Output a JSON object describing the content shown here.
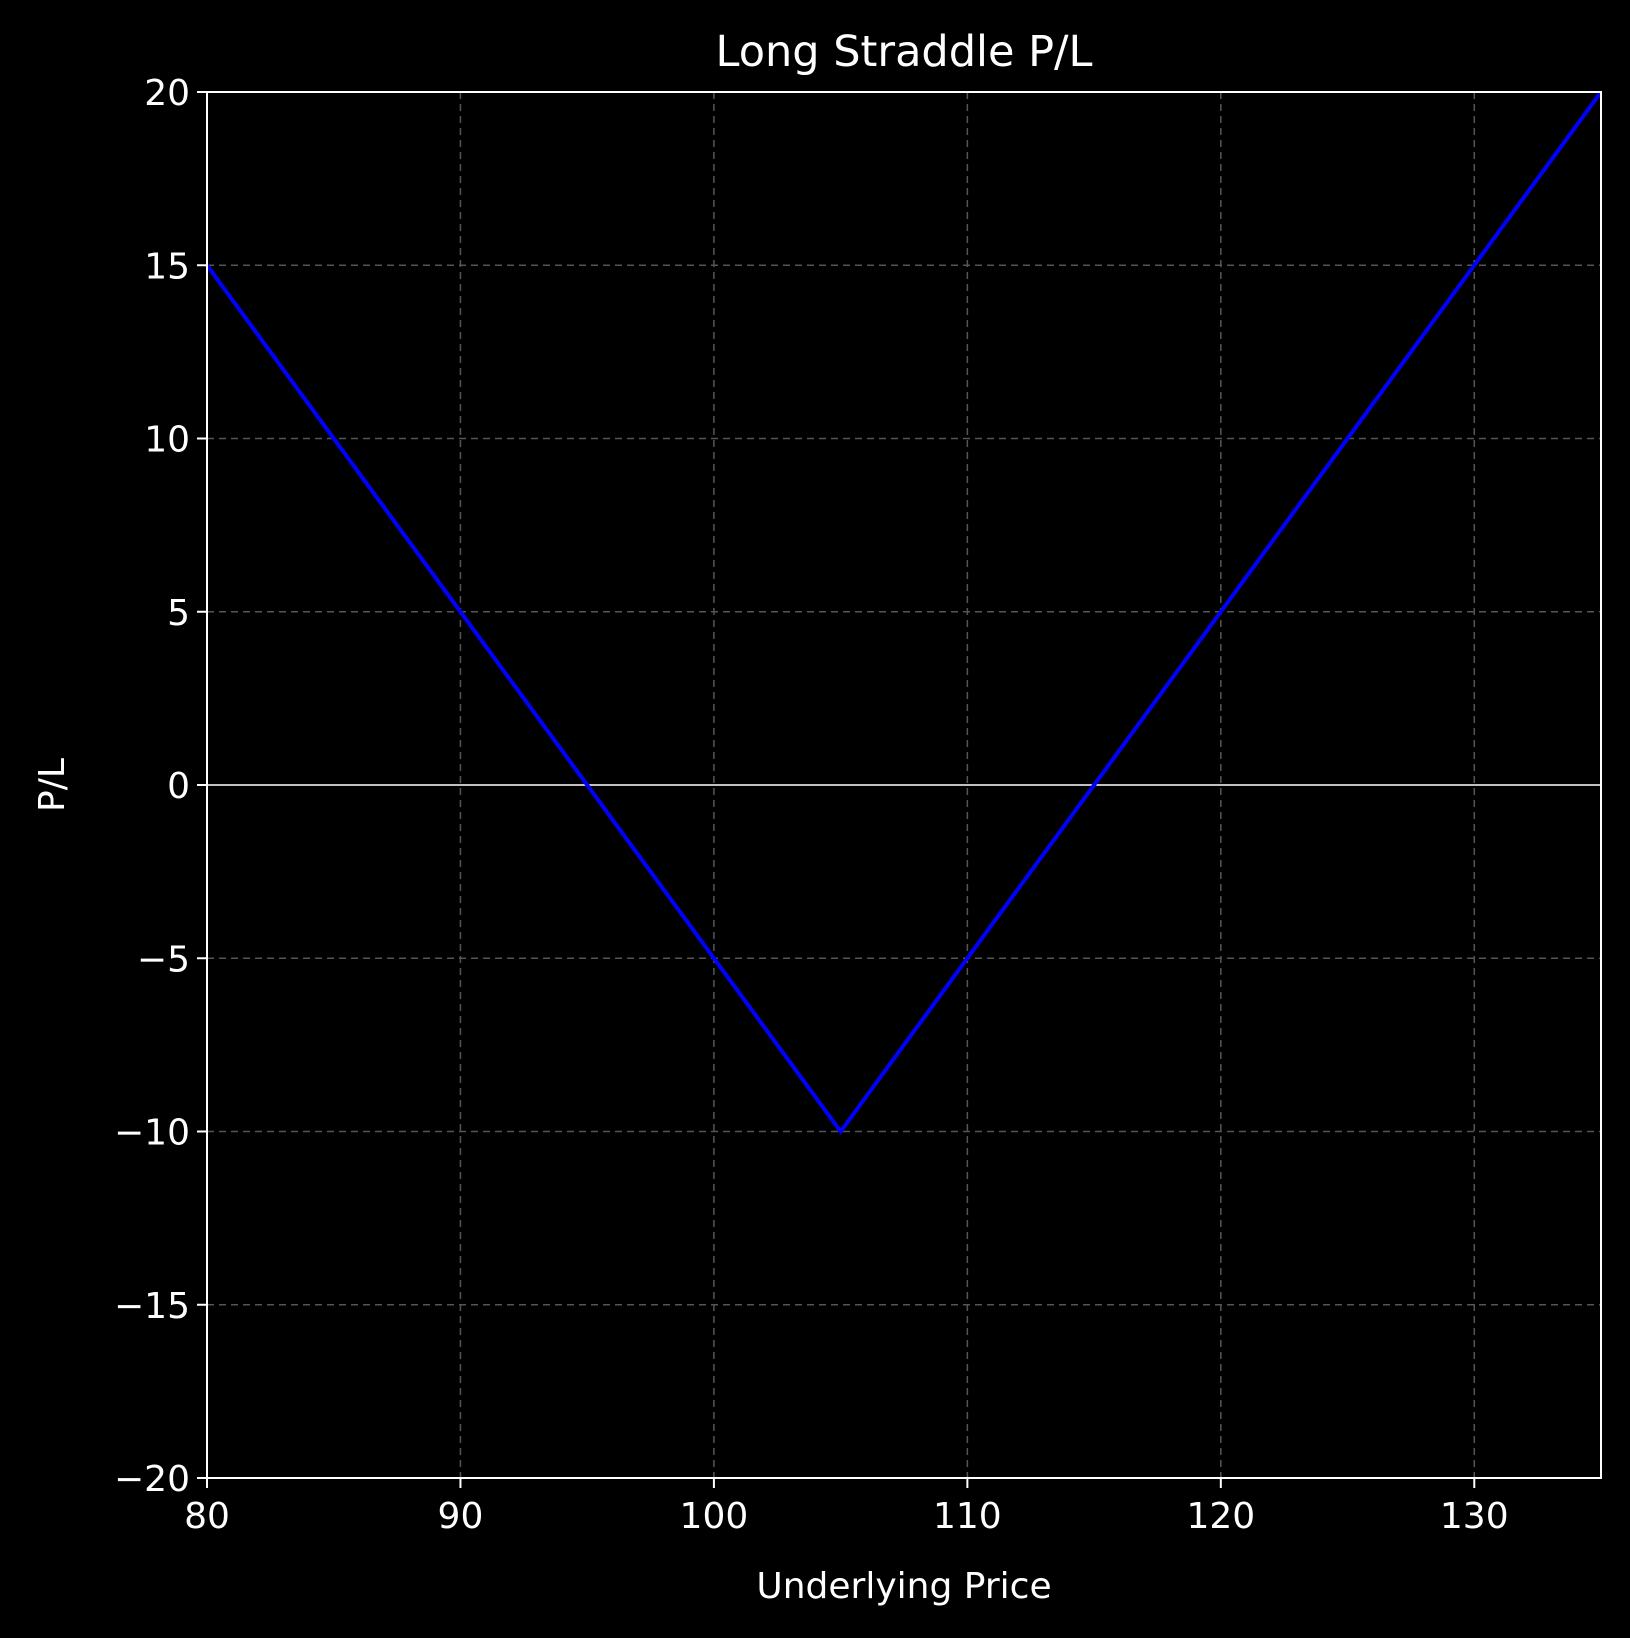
{
  "chart_data": {
    "type": "line",
    "title": "Long Straddle P/L",
    "xlabel": "Underlying Price",
    "ylabel": "P/L",
    "xlim": [
      80,
      135
    ],
    "ylim": [
      -20,
      20
    ],
    "x_ticks": [
      80,
      90,
      100,
      110,
      120,
      130
    ],
    "y_ticks": [
      -20,
      -15,
      -10,
      -5,
      0,
      5,
      10,
      15,
      20
    ],
    "x_tick_labels": [
      "80",
      "90",
      "100",
      "110",
      "120",
      "130"
    ],
    "y_tick_labels": [
      "−20",
      "−15",
      "−10",
      "−5",
      "0",
      "5",
      "10",
      "15",
      "20"
    ],
    "grid": true,
    "zero_line": true,
    "series": [
      {
        "color": "#0000ff",
        "x": [
          80,
          105,
          135
        ],
        "y": [
          15,
          -10,
          20
        ]
      }
    ],
    "colors": {
      "background": "#000000",
      "axes": "#ffffff",
      "grid": "#555555",
      "text": "#ffffff"
    }
  }
}
